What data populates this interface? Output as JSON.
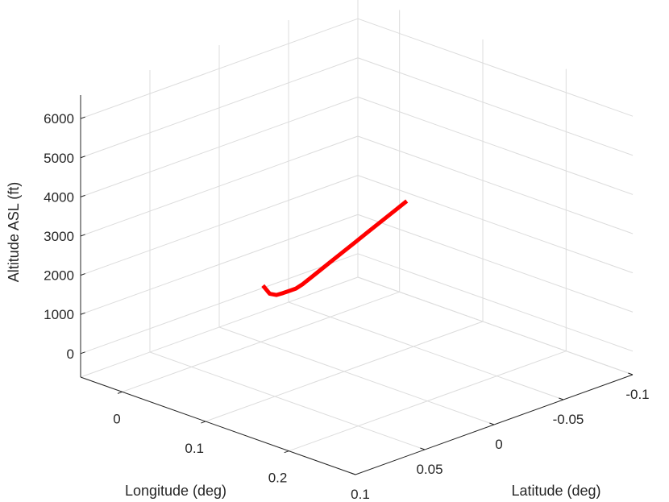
{
  "chart_data": {
    "type": "line",
    "projection": "3d",
    "title": "",
    "xlabel": "Longitude (deg)",
    "ylabel": "Latitude (deg)",
    "zlabel": "Altitude ASL (ft)",
    "xlim": [
      -0.05,
      0.28
    ],
    "ylim": [
      -0.1,
      0.1
    ],
    "zlim": [
      -600,
      6600
    ],
    "x_ticks": [
      {
        "value": 0,
        "label": "0"
      },
      {
        "value": 0.1,
        "label": "0.1"
      },
      {
        "value": 0.2,
        "label": "0.2"
      }
    ],
    "y_ticks": [
      {
        "value": -0.1,
        "label": "-0.1"
      },
      {
        "value": -0.05,
        "label": "-0.05"
      },
      {
        "value": 0,
        "label": "0"
      },
      {
        "value": 0.05,
        "label": "0.05"
      },
      {
        "value": 0.1,
        "label": "0.1"
      }
    ],
    "z_ticks": [
      {
        "value": 0,
        "label": "0"
      },
      {
        "value": 1000,
        "label": "1000"
      },
      {
        "value": 2000,
        "label": "2000"
      },
      {
        "value": 3000,
        "label": "3000"
      },
      {
        "value": 4000,
        "label": "4000"
      },
      {
        "value": 5000,
        "label": "5000"
      },
      {
        "value": 6000,
        "label": "6000"
      }
    ],
    "grid": true,
    "series": [
      {
        "color": "#ff0000",
        "x": [
          0.0,
          0.01,
          0.02,
          0.03,
          0.04,
          0.05,
          0.06,
          0.08,
          0.1,
          0.12,
          0.14,
          0.16,
          0.18,
          0.2,
          0.22
        ],
        "y": [
          -0.0015,
          -0.0004,
          0.0009,
          0.0022,
          0.0035,
          0.0048,
          0.0061,
          0.0087,
          0.0113,
          0.0139,
          0.0165,
          0.0191,
          0.0217,
          0.0243,
          0.0269
        ],
        "z": [
          820,
          700,
          760,
          900,
          1050,
          1200,
          1400,
          1850,
          2300,
          2750,
          3200,
          3650,
          4100,
          4550,
          5000
        ]
      }
    ]
  }
}
